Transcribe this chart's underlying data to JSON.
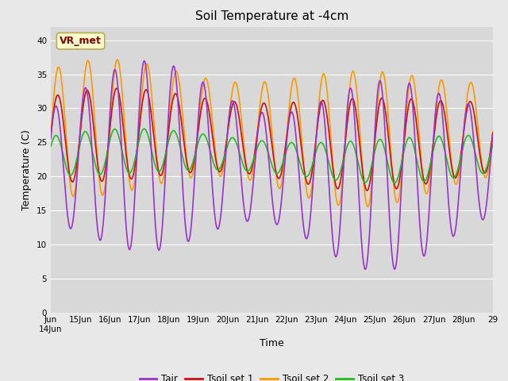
{
  "title": "Soil Temperature at -4cm",
  "xlabel": "Time",
  "ylabel": "Temperature (C)",
  "ylim": [
    0,
    42
  ],
  "yticks": [
    0,
    5,
    10,
    15,
    20,
    25,
    30,
    35,
    40
  ],
  "fig_bg": "#e8e8e8",
  "plot_bg": "#d8d8d8",
  "colors": {
    "Tair": "#9933cc",
    "Tsoil1": "#cc1111",
    "Tsoil2": "#ff9900",
    "Tsoil3": "#22bb22"
  },
  "legend_labels": [
    "Tair",
    "Tsoil set 1",
    "Tsoil set 2",
    "Tsoil set 3"
  ],
  "annotation_text": "VR_met",
  "annotation_fg": "#880000",
  "annotation_bg": "#ffffcc",
  "annotation_border": "#bbaa55",
  "n_days": 15,
  "start_day": 14,
  "xtick_labels": [
    "Jun\n14Jun",
    "15Jun",
    "16Jun",
    "17Jun",
    "18Jun",
    "19Jun",
    "20Jun",
    "21Jun",
    "22Jun",
    "23Jun",
    "24Jun",
    "25Jun",
    "26Jun",
    "27Jun",
    "28Jun",
    "29"
  ],
  "grid_color": "#ffffff",
  "line_width": 1.2
}
